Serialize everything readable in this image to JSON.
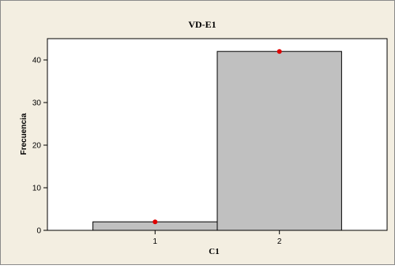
{
  "colors": {
    "background": "#f3eee1",
    "plot_background": "#ffffff",
    "bar_fill": "#c0c0c0",
    "bar_stroke": "#000000",
    "point": "#e00000",
    "frame": "#8a8a8a"
  },
  "chart_data": {
    "type": "bar",
    "title": "VD-E1",
    "xlabel": "C1",
    "ylabel": "Frecuencia",
    "categories": [
      "1",
      "2"
    ],
    "values": [
      2,
      42
    ],
    "ylim": [
      0,
      45
    ],
    "yticks": [
      0,
      10,
      20,
      30,
      40
    ],
    "grid": false,
    "legend": "none",
    "markers": "red dot at top of each bar"
  }
}
